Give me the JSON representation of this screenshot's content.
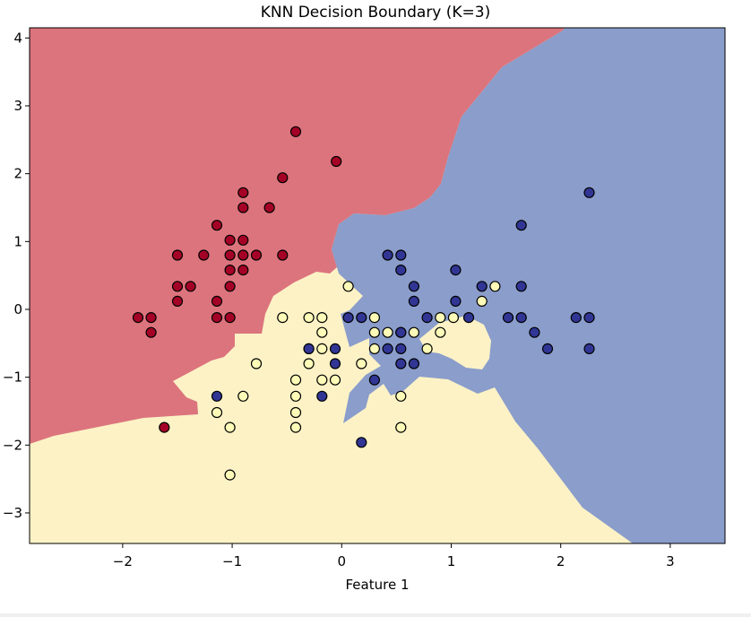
{
  "chart_data": {
    "type": "scatter",
    "title": "KNN Decision Boundary (K=3)",
    "xlabel": "Feature 1",
    "ylabel": "",
    "xlim": [
      -2.85,
      3.5
    ],
    "ylim": [
      -3.45,
      4.15
    ],
    "xticks": [
      -2,
      -1,
      0,
      1,
      2,
      3
    ],
    "xtick_labels": [
      "−2",
      "−1",
      "0",
      "1",
      "2",
      "3"
    ],
    "yticks": [
      -3,
      -2,
      -1,
      0,
      1,
      2,
      3,
      4
    ],
    "ytick_labels": [
      "−3",
      "−2",
      "−1",
      "0",
      "1",
      "2",
      "3",
      "4"
    ],
    "grid": false,
    "decision_regions": [
      {
        "class": 0,
        "color": "#dc747d"
      },
      {
        "class": 1,
        "color": "#fcf2c6"
      },
      {
        "class": 2,
        "color": "#8a9dcb"
      }
    ],
    "series": [
      {
        "class": 0,
        "color": "#a50026",
        "points": [
          [
            -0.42,
            2.62
          ],
          [
            -0.05,
            2.18
          ],
          [
            -0.54,
            1.94
          ],
          [
            -0.9,
            1.72
          ],
          [
            -0.9,
            1.5
          ],
          [
            -0.66,
            1.5
          ],
          [
            -1.14,
            1.24
          ],
          [
            -1.02,
            1.02
          ],
          [
            -0.9,
            1.02
          ],
          [
            -1.5,
            0.8
          ],
          [
            -1.26,
            0.8
          ],
          [
            -1.02,
            0.8
          ],
          [
            -0.9,
            0.8
          ],
          [
            -0.78,
            0.8
          ],
          [
            -0.54,
            0.8
          ],
          [
            -1.02,
            0.58
          ],
          [
            -0.9,
            0.58
          ],
          [
            -1.5,
            0.34
          ],
          [
            -1.38,
            0.34
          ],
          [
            -1.02,
            0.34
          ],
          [
            -1.5,
            0.12
          ],
          [
            -1.14,
            0.12
          ],
          [
            -1.86,
            -0.12
          ],
          [
            -1.74,
            -0.12
          ],
          [
            -1.14,
            -0.12
          ],
          [
            -1.02,
            -0.12
          ],
          [
            -1.74,
            -0.34
          ],
          [
            -1.62,
            -1.74
          ]
        ]
      },
      {
        "class": 1,
        "color": "#fefbb8",
        "points": [
          [
            0.06,
            0.34
          ],
          [
            -0.54,
            -0.12
          ],
          [
            -0.3,
            -0.12
          ],
          [
            -0.18,
            -0.12
          ],
          [
            0.3,
            -0.12
          ],
          [
            0.9,
            -0.12
          ],
          [
            1.02,
            -0.12
          ],
          [
            -0.18,
            -0.34
          ],
          [
            0.3,
            -0.34
          ],
          [
            0.42,
            -0.34
          ],
          [
            0.54,
            -0.34
          ],
          [
            0.66,
            -0.34
          ],
          [
            0.9,
            -0.34
          ],
          [
            -0.3,
            -0.58
          ],
          [
            -0.18,
            -0.58
          ],
          [
            0.3,
            -0.58
          ],
          [
            0.78,
            -0.58
          ],
          [
            -0.78,
            -0.8
          ],
          [
            -0.3,
            -0.8
          ],
          [
            0.18,
            -0.8
          ],
          [
            -0.42,
            -1.04
          ],
          [
            -0.18,
            -1.04
          ],
          [
            -0.06,
            -1.04
          ],
          [
            -0.9,
            -1.28
          ],
          [
            -0.42,
            -1.28
          ],
          [
            0.54,
            -1.28
          ],
          [
            -1.14,
            -1.52
          ],
          [
            -0.42,
            -1.52
          ],
          [
            -1.02,
            -1.74
          ],
          [
            -0.42,
            -1.74
          ],
          [
            0.54,
            -1.74
          ],
          [
            -1.02,
            -2.44
          ],
          [
            1.28,
            0.12
          ],
          [
            1.4,
            0.34
          ]
        ]
      },
      {
        "class": 2,
        "color": "#313695",
        "points": [
          [
            2.26,
            1.72
          ],
          [
            1.64,
            1.24
          ],
          [
            0.42,
            0.8
          ],
          [
            0.54,
            0.8
          ],
          [
            0.54,
            0.58
          ],
          [
            1.04,
            0.58
          ],
          [
            0.66,
            0.34
          ],
          [
            1.28,
            0.34
          ],
          [
            1.64,
            0.34
          ],
          [
            0.66,
            0.12
          ],
          [
            1.04,
            0.12
          ],
          [
            0.06,
            -0.12
          ],
          [
            0.18,
            -0.12
          ],
          [
            0.78,
            -0.12
          ],
          [
            1.16,
            -0.12
          ],
          [
            1.52,
            -0.12
          ],
          [
            1.64,
            -0.12
          ],
          [
            2.14,
            -0.12
          ],
          [
            2.26,
            -0.12
          ],
          [
            0.54,
            -0.34
          ],
          [
            1.76,
            -0.34
          ],
          [
            -0.3,
            -0.58
          ],
          [
            -0.06,
            -0.58
          ],
          [
            0.42,
            -0.58
          ],
          [
            0.54,
            -0.58
          ],
          [
            1.88,
            -0.58
          ],
          [
            2.26,
            -0.58
          ],
          [
            -0.06,
            -0.8
          ],
          [
            0.54,
            -0.8
          ],
          [
            0.66,
            -0.8
          ],
          [
            0.3,
            -1.04
          ],
          [
            -1.14,
            -1.28
          ],
          [
            -0.18,
            -1.28
          ],
          [
            0.18,
            -1.96
          ]
        ]
      }
    ]
  }
}
